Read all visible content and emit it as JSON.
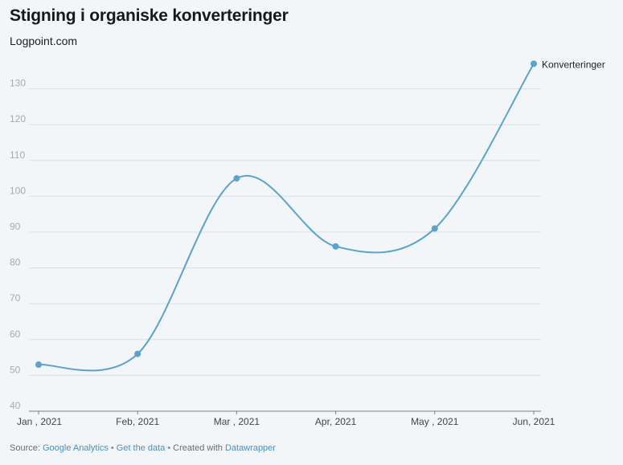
{
  "header": {
    "title": "Stigning i organiske konverteringer",
    "subtitle": "Logpoint.com"
  },
  "colors": {
    "line": "#5aa3cc",
    "grid": "#dcdfe2",
    "tick_text": "#a9a9a9",
    "background": "#f3f6f8"
  },
  "chart_data": {
    "type": "line",
    "categories": [
      "Jan , 2021",
      "Feb, 2021",
      "Mar , 2021",
      "Apr, 2021",
      "May , 2021",
      "Jun, 2021"
    ],
    "series": [
      {
        "name": "Konverteringer",
        "values": [
          53,
          56,
          105,
          86,
          91,
          137
        ]
      }
    ],
    "yticks": [
      40,
      50,
      60,
      70,
      80,
      90,
      100,
      110,
      120,
      130
    ],
    "ylim": [
      40,
      140
    ],
    "grid": true,
    "smooth": true,
    "legend": "inline-end-label"
  },
  "footer": {
    "source_prefix": "Source: ",
    "source_link": "Google Analytics",
    "separator": "•",
    "get_data": "Get the data",
    "created_with": "Created with ",
    "tool": "Datawrapper"
  }
}
